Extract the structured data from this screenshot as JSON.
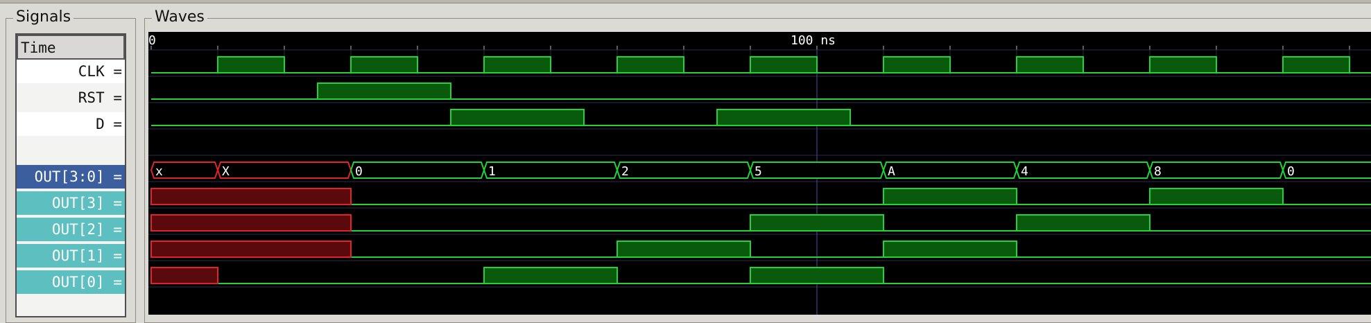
{
  "frames": {
    "signals_title": "Signals",
    "waves_title": "Waves"
  },
  "time": {
    "header_label": "Time",
    "marker_label": "100 ns",
    "zero_label": "0",
    "end_ns": 195
  },
  "signals": [
    {
      "id": "clk",
      "label": "CLK =",
      "type": "bit"
    },
    {
      "id": "rst",
      "label": "RST =",
      "type": "bit"
    },
    {
      "id": "d",
      "label": "D =",
      "type": "bit"
    },
    {
      "id": "blank",
      "label": "",
      "type": "blank"
    },
    {
      "id": "out_bus",
      "label": "OUT[3:0] =",
      "type": "bus"
    },
    {
      "id": "out3",
      "label": "OUT[3] =",
      "type": "bit"
    },
    {
      "id": "out2",
      "label": "OUT[2] =",
      "type": "bit"
    },
    {
      "id": "out1",
      "label": "OUT[1] =",
      "type": "bit"
    },
    {
      "id": "out0",
      "label": "OUT[0] =",
      "type": "bit"
    }
  ],
  "waves": {
    "clk": {
      "period_ns": 20,
      "high_offset_ns": 10
    },
    "rst": [
      {
        "start": 25,
        "end": 45,
        "level": "high"
      }
    ],
    "d": [
      {
        "start": 45,
        "end": 65,
        "level": "high"
      },
      {
        "start": 85,
        "end": 105,
        "level": "high"
      }
    ],
    "out_bus": [
      {
        "start": 0,
        "end": 10,
        "value": "x",
        "state": "unknown"
      },
      {
        "start": 10,
        "end": 30,
        "value": "X",
        "state": "unknown"
      },
      {
        "start": 30,
        "end": 50,
        "value": "0",
        "state": "valid"
      },
      {
        "start": 50,
        "end": 70,
        "value": "1",
        "state": "valid"
      },
      {
        "start": 70,
        "end": 90,
        "value": "2",
        "state": "valid"
      },
      {
        "start": 90,
        "end": 110,
        "value": "5",
        "state": "valid"
      },
      {
        "start": 110,
        "end": 130,
        "value": "A",
        "state": "valid"
      },
      {
        "start": 130,
        "end": 150,
        "value": "4",
        "state": "valid"
      },
      {
        "start": 150,
        "end": 170,
        "value": "8",
        "state": "valid"
      },
      {
        "start": 170,
        "end": 195,
        "value": "0",
        "state": "valid"
      }
    ],
    "out3": [
      {
        "start": 0,
        "end": 30,
        "level": "unknown"
      },
      {
        "start": 110,
        "end": 130,
        "level": "high"
      },
      {
        "start": 150,
        "end": 170,
        "level": "high"
      }
    ],
    "out2": [
      {
        "start": 0,
        "end": 30,
        "level": "unknown"
      },
      {
        "start": 90,
        "end": 110,
        "level": "high"
      },
      {
        "start": 130,
        "end": 150,
        "level": "high"
      }
    ],
    "out1": [
      {
        "start": 0,
        "end": 30,
        "level": "unknown"
      },
      {
        "start": 70,
        "end": 90,
        "level": "high"
      },
      {
        "start": 110,
        "end": 130,
        "level": "high"
      }
    ],
    "out0": [
      {
        "start": 0,
        "end": 10,
        "level": "unknown"
      },
      {
        "start": 50,
        "end": 70,
        "level": "high"
      },
      {
        "start": 90,
        "end": 110,
        "level": "high"
      }
    ]
  },
  "colors": {
    "wave_line": "#22d23a",
    "wave_fill": "#0a5a0d",
    "unknown_line": "#e0242a",
    "unknown_fill": "#5a0a0d",
    "grid": "#2b2b4e",
    "marker": "#36366e",
    "timeline_text": "#ffffff"
  }
}
